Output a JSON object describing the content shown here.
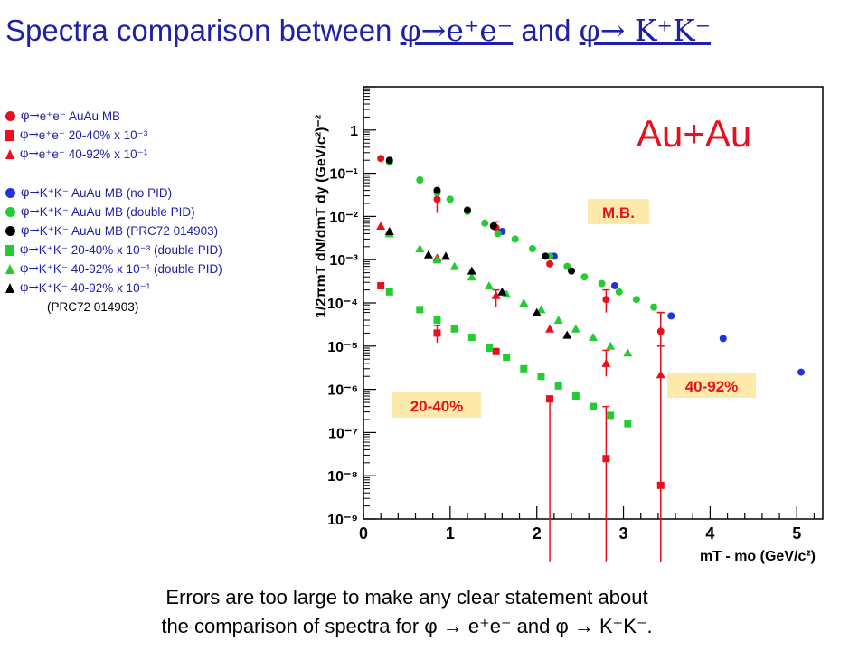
{
  "slide": {
    "title_text": "Spectra comparison between ",
    "title_proc1": "φ→e⁺e⁻",
    "title_and": " and ",
    "title_proc2": "φ→ K⁺K⁻",
    "footnote_line1": "Errors are too large to make any clear statement about",
    "footnote_line2": "the comparison of spectra for φ → e⁺e⁻ and φ → K⁺K⁻."
  },
  "legend": [
    {
      "marker": "circle",
      "color": "#e8101e",
      "phi": "φ",
      "arrow": "→",
      "text": " e⁺e⁻ AuAu MB",
      "text_color": "#1f1fa8"
    },
    {
      "marker": "square",
      "color": "#e8101e",
      "phi": "φ",
      "arrow": "→",
      "text": " e⁺e⁻ 20-40% x 10⁻³",
      "text_color": "#1f1fa8"
    },
    {
      "marker": "tri",
      "color": "#e8101e",
      "phi": "φ",
      "arrow": "→",
      "text": " e⁺e⁻  40-92% x 10⁻¹",
      "text_color": "#1f1fa8"
    },
    {
      "marker": "circle",
      "color": "#2233dd",
      "phi": "φ",
      "arrow": "→",
      "text": " K⁺K⁻ AuAu MB (no PID)",
      "text_color": "#1f1fa8"
    },
    {
      "marker": "circle",
      "color": "#22cc33",
      "phi": "φ",
      "arrow": "→",
      "text": " K⁺K⁻ AuAu MB (double PID)",
      "text_color": "#1f1fa8"
    },
    {
      "marker": "circle",
      "color": "#000000",
      "phi": "φ",
      "arrow": "→",
      "text": " K⁺K⁻ AuAu MB (PRC72 014903)",
      "text_color": "#1f1fa8"
    },
    {
      "marker": "square",
      "color": "#22cc33",
      "phi": "φ",
      "arrow": "→",
      "text": " K⁺K⁻ 20-40%  x 10⁻³ (double PID)",
      "text_color": "#1f1fa8"
    },
    {
      "marker": "tri",
      "color": "#22cc33",
      "phi": "φ",
      "arrow": "→",
      "text": " K⁺K⁻ 40-92%  x 10⁻¹ (double PID)",
      "text_color": "#1f1fa8"
    },
    {
      "marker": "tri",
      "color": "#000000",
      "phi": "φ",
      "arrow": "→",
      "text": " K⁺K⁻ 40-92%  x 10⁻¹",
      "text_color": "#1f1fa8"
    }
  ],
  "legend_continuation": "(PRC72 014903)",
  "chart_data": {
    "type": "scatter",
    "xlabel": "mT - mo (GeV/c²)",
    "ylabel": "1/2πmT dN/dmT dy (GeV/c²)⁻²",
    "xlim": [
      0,
      5.3
    ],
    "ylim_log10": [
      -9,
      1
    ],
    "y_scale": "log",
    "x_ticks": [
      "0",
      "1",
      "2",
      "3",
      "4",
      "5"
    ],
    "y_ticks": [
      "1",
      "10⁻¹",
      "10⁻²",
      "10⁻³",
      "10⁻⁴",
      "10⁻⁵",
      "10⁻⁶",
      "10⁻⁷",
      "10⁻⁸",
      "10⁻⁹"
    ],
    "annotations": {
      "system": "Au+Au",
      "mb": "M.B.",
      "c2040": "20-40%",
      "c4092": "40-92%"
    },
    "series": [
      {
        "name": "φ→ e⁺e⁻ AuAu MB",
        "marker": "circle",
        "color": "#e8101e",
        "x": [
          0.2,
          0.85,
          1.53,
          2.15,
          2.8,
          3.43
        ],
        "y": [
          0.22,
          0.025,
          0.0055,
          0.0008,
          0.00012,
          2.2e-05
        ]
      },
      {
        "name": "φ→ e⁺e⁻ 20-40% x 10⁻³",
        "marker": "square",
        "color": "#e8101e",
        "x": [
          0.2,
          0.85,
          1.53,
          2.15,
          2.8,
          3.43
        ],
        "y": [
          0.00025,
          2e-05,
          7.5e-06,
          6e-07,
          2.5e-08,
          6e-09
        ]
      },
      {
        "name": "φ→ e⁺e⁻  40-92% x 10⁻¹",
        "marker": "tri",
        "color": "#e8101e",
        "x": [
          0.2,
          0.85,
          1.53,
          2.15,
          2.8,
          3.43
        ],
        "y": [
          0.006,
          0.0011,
          0.00015,
          2.5e-05,
          4e-06,
          2.2e-06
        ]
      },
      {
        "name": "φ→ K⁺K⁻ AuAu MB (no PID)",
        "marker": "circle",
        "color": "#2233dd",
        "x": [
          1.6,
          2.2,
          2.9,
          3.55,
          4.15,
          5.05
        ],
        "y": [
          0.0045,
          0.0012,
          0.00025,
          5e-05,
          1.5e-05,
          2.5e-06
        ]
      },
      {
        "name": "φ→ K⁺K⁻ AuAu MB (double PID)",
        "marker": "circle",
        "color": "#22cc33",
        "x": [
          0.3,
          0.65,
          0.85,
          1.0,
          1.2,
          1.4,
          1.55,
          1.75,
          1.95,
          2.15,
          2.35,
          2.55,
          2.75,
          2.95,
          3.15,
          3.35
        ],
        "y": [
          0.18,
          0.07,
          0.035,
          0.025,
          0.013,
          0.007,
          0.004,
          0.003,
          0.0018,
          0.0012,
          0.0007,
          0.0004,
          0.00028,
          0.00018,
          0.00012,
          8e-05
        ]
      },
      {
        "name": "φ→ K⁺K⁻ AuAu MB (PRC72 014903)",
        "marker": "circle",
        "color": "#000000",
        "x": [
          0.3,
          0.85,
          1.2,
          1.5,
          2.1,
          2.4
        ],
        "y": [
          0.2,
          0.04,
          0.014,
          0.006,
          0.0012,
          0.00055
        ]
      },
      {
        "name": "φ→ K⁺K⁻ 20-40%  x 10⁻³ (double PID)",
        "marker": "square",
        "color": "#22cc33",
        "x": [
          0.3,
          0.65,
          0.85,
          1.05,
          1.25,
          1.45,
          1.65,
          1.85,
          2.05,
          2.25,
          2.45,
          2.65,
          2.85,
          3.05
        ],
        "y": [
          0.00018,
          7e-05,
          4e-05,
          2.5e-05,
          1.6e-05,
          9e-06,
          5.5e-06,
          3e-06,
          2e-06,
          1.2e-06,
          7e-07,
          4e-07,
          2.5e-07,
          1.6e-07
        ]
      },
      {
        "name": "φ→ K⁺K⁻ 40-92%  x 10⁻¹ (double PID)",
        "marker": "tri",
        "color": "#22cc33",
        "x": [
          0.3,
          0.65,
          0.85,
          1.05,
          1.25,
          1.45,
          1.65,
          1.85,
          2.05,
          2.25,
          2.45,
          2.65,
          2.85,
          3.05
        ],
        "y": [
          0.004,
          0.0018,
          0.001,
          0.0007,
          0.0004,
          0.00025,
          0.00016,
          0.0001,
          7e-05,
          4e-05,
          2.5e-05,
          1.6e-05,
          1e-05,
          7e-06
        ]
      },
      {
        "name": "φ→ K⁺K⁻ 40-92%  x 10⁻¹",
        "marker": "tri",
        "color": "#000000",
        "x": [
          0.3,
          0.75,
          0.95,
          1.25,
          1.6,
          2.0,
          2.35
        ],
        "y": [
          0.0045,
          0.0013,
          0.0012,
          0.00055,
          0.00018,
          6e-05,
          1.8e-05
        ]
      }
    ],
    "error_bars": [
      {
        "x": 2.15,
        "y": 6e-07,
        "lo": 1e-10,
        "hi": 7e-07
      },
      {
        "x": 2.8,
        "y": 2.5e-08,
        "lo": 1e-10,
        "hi": 4e-07
      },
      {
        "x": 3.43,
        "y": 6e-09,
        "lo": 1e-10,
        "hi": 6e-05
      },
      {
        "x": 3.43,
        "y": 2.2e-06,
        "lo": 1e-10,
        "hi": 1e-05
      },
      {
        "x": 3.43,
        "y": 2.2e-05,
        "lo": 1e-10,
        "hi": 6e-05
      },
      {
        "x": 2.8,
        "y": 0.00012,
        "lo": 6e-05,
        "hi": 0.0002
      },
      {
        "x": 2.8,
        "y": 4e-06,
        "lo": 2e-06,
        "hi": 8e-06
      },
      {
        "x": 0.85,
        "y": 0.025,
        "lo": 0.012,
        "hi": 0.035
      },
      {
        "x": 1.53,
        "y": 0.0055,
        "lo": 0.0035,
        "hi": 0.0075
      },
      {
        "x": 1.53,
        "y": 0.00015,
        "lo": 8e-05,
        "hi": 0.0002
      },
      {
        "x": 0.85,
        "y": 2e-05,
        "lo": 1.2e-05,
        "hi": 3e-05
      }
    ]
  }
}
